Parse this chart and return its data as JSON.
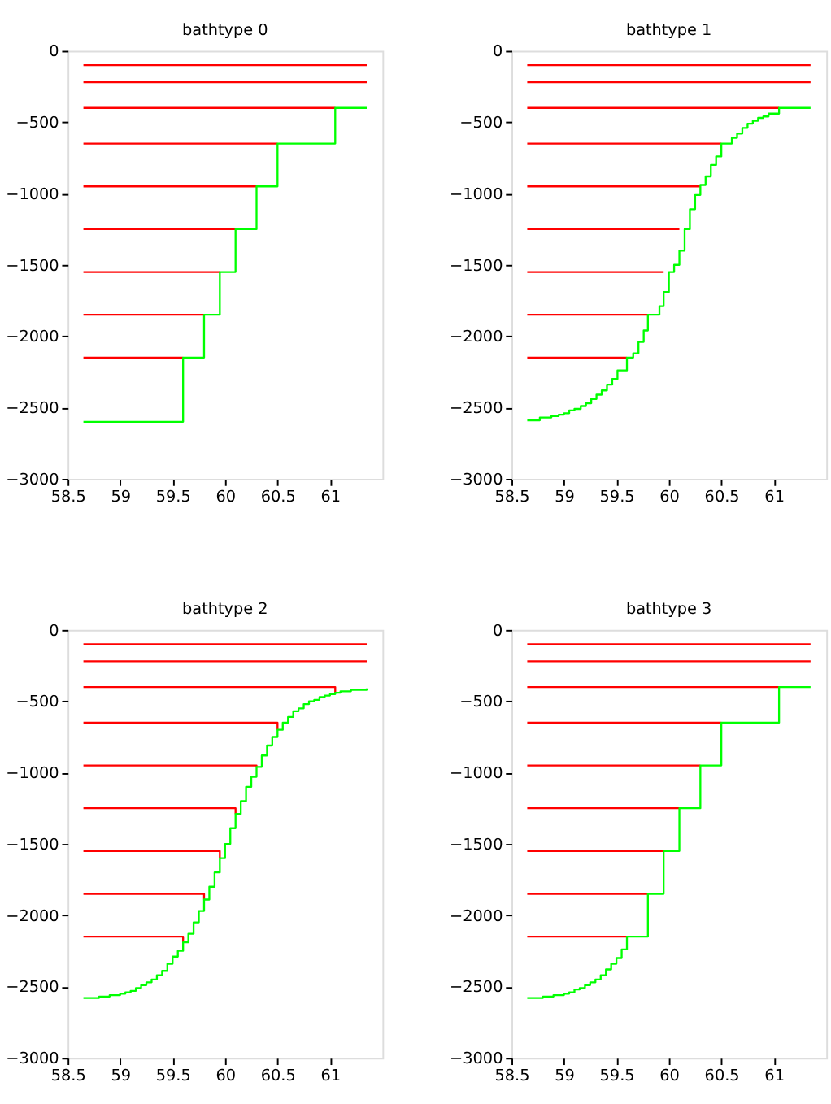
{
  "chart_data": [
    {
      "type": "line",
      "title": "bathtype 0",
      "xlim": [
        58.5,
        61.5
      ],
      "ylim": [
        -3000,
        0
      ],
      "xticks": [
        58.5,
        59,
        59.5,
        60,
        60.5,
        61
      ],
      "yticks": [
        -3000,
        -2500,
        -2000,
        -1500,
        -1000,
        -500,
        0
      ],
      "grid": false,
      "series": [
        {
          "color": "#ff0000",
          "x": [
            58.65,
            61.35
          ],
          "values": [
            -100,
            -100
          ]
        },
        {
          "color": "#ff0000",
          "x": [
            58.65,
            61.35
          ],
          "values": [
            -220,
            -220
          ]
        },
        {
          "color": "#ff0000",
          "x": [
            58.65,
            61.05
          ],
          "values": [
            -400,
            -400
          ]
        },
        {
          "color": "#ff0000",
          "x": [
            58.65,
            60.5
          ],
          "values": [
            -650,
            -650
          ]
        },
        {
          "color": "#ff0000",
          "x": [
            58.65,
            60.3
          ],
          "values": [
            -950,
            -950
          ]
        },
        {
          "color": "#ff0000",
          "x": [
            58.65,
            60.1
          ],
          "values": [
            -1250,
            -1250
          ]
        },
        {
          "color": "#ff0000",
          "x": [
            58.65,
            59.95
          ],
          "values": [
            -1550,
            -1550
          ]
        },
        {
          "color": "#ff0000",
          "x": [
            58.65,
            59.8
          ],
          "values": [
            -1850,
            -1850
          ]
        },
        {
          "color": "#ff0000",
          "x": [
            58.65,
            59.6
          ],
          "values": [
            -2150,
            -2150
          ]
        },
        {
          "type": "step",
          "color": "#00ff00",
          "x": [
            58.65,
            59.6,
            59.8,
            59.95,
            60.1,
            60.3,
            60.5,
            61.05,
            61.35
          ],
          "values": [
            -2600,
            -2150,
            -1850,
            -1550,
            -1250,
            -950,
            -650,
            -400,
            -400
          ]
        }
      ]
    },
    {
      "type": "line",
      "title": "bathtype 1",
      "xlim": [
        58.5,
        61.5
      ],
      "ylim": [
        -3000,
        0
      ],
      "xticks": [
        58.5,
        59,
        59.5,
        60,
        60.5,
        61
      ],
      "yticks": [
        -3000,
        -2500,
        -2000,
        -1500,
        -1000,
        -500,
        0
      ],
      "grid": false,
      "series": [
        {
          "color": "#ff0000",
          "x": [
            58.65,
            61.35
          ],
          "values": [
            -100,
            -100
          ]
        },
        {
          "color": "#ff0000",
          "x": [
            58.65,
            61.35
          ],
          "values": [
            -220,
            -220
          ]
        },
        {
          "color": "#ff0000",
          "x": [
            58.65,
            61.05
          ],
          "values": [
            -400,
            -400
          ]
        },
        {
          "color": "#ff0000",
          "x": [
            58.65,
            60.5
          ],
          "values": [
            -650,
            -650
          ]
        },
        {
          "color": "#ff0000",
          "x": [
            58.65,
            60.3
          ],
          "values": [
            -950,
            -950
          ]
        },
        {
          "color": "#ff0000",
          "x": [
            58.65,
            60.1
          ],
          "values": [
            -1250,
            -1250
          ]
        },
        {
          "color": "#ff0000",
          "x": [
            58.65,
            59.95
          ],
          "values": [
            -1550,
            -1550
          ]
        },
        {
          "color": "#ff0000",
          "x": [
            58.65,
            59.8
          ],
          "values": [
            -1850,
            -1850
          ]
        },
        {
          "color": "#ff0000",
          "x": [
            58.65,
            59.6
          ],
          "values": [
            -2150,
            -2150
          ]
        },
        {
          "type": "step",
          "color": "#00ff00",
          "x": [
            58.65,
            58.77,
            58.88,
            58.95,
            59.0,
            59.05,
            59.1,
            59.16,
            59.21,
            59.26,
            59.31,
            59.36,
            59.41,
            59.46,
            59.51,
            59.6,
            59.66,
            59.71,
            59.76,
            59.8,
            59.91,
            59.95,
            60.0,
            60.05,
            60.1,
            60.15,
            60.2,
            60.25,
            60.3,
            60.35,
            60.4,
            60.45,
            60.5,
            60.6,
            60.65,
            60.7,
            60.75,
            60.8,
            60.85,
            60.9,
            60.95,
            61.05,
            61.35
          ],
          "values": [
            -2590,
            -2570,
            -2560,
            -2550,
            -2540,
            -2520,
            -2510,
            -2490,
            -2470,
            -2440,
            -2410,
            -2380,
            -2340,
            -2300,
            -2240,
            -2150,
            -2120,
            -2040,
            -1960,
            -1850,
            -1790,
            -1690,
            -1550,
            -1500,
            -1400,
            -1250,
            -1110,
            -1010,
            -940,
            -880,
            -800,
            -740,
            -650,
            -610,
            -580,
            -540,
            -510,
            -490,
            -470,
            -460,
            -440,
            -400,
            -400
          ]
        }
      ]
    },
    {
      "type": "line",
      "title": "bathtype 2",
      "xlim": [
        58.5,
        61.5
      ],
      "ylim": [
        -3000,
        0
      ],
      "xticks": [
        58.5,
        59,
        59.5,
        60,
        60.5,
        61
      ],
      "yticks": [
        -3000,
        -2500,
        -2000,
        -1500,
        -1000,
        -500,
        0
      ],
      "grid": false,
      "series": [
        {
          "color": "#ff0000",
          "x": [
            58.65,
            61.35
          ],
          "values": [
            -100,
            -100
          ]
        },
        {
          "color": "#ff0000",
          "x": [
            58.65,
            61.35
          ],
          "values": [
            -220,
            -220
          ]
        },
        {
          "color": "#ff0000",
          "x": [
            58.65,
            61.05,
            61.05
          ],
          "values": [
            -400,
            -400,
            -440
          ]
        },
        {
          "color": "#ff0000",
          "x": [
            58.65,
            60.5,
            60.5
          ],
          "values": [
            -650,
            -650,
            -700
          ]
        },
        {
          "color": "#ff0000",
          "x": [
            58.65,
            60.3,
            60.3
          ],
          "values": [
            -950,
            -950,
            -960
          ]
        },
        {
          "color": "#ff0000",
          "x": [
            58.65,
            60.1,
            60.1
          ],
          "values": [
            -1250,
            -1250,
            -1290
          ]
        },
        {
          "color": "#ff0000",
          "x": [
            58.65,
            59.95,
            59.95
          ],
          "values": [
            -1550,
            -1550,
            -1600
          ]
        },
        {
          "color": "#ff0000",
          "x": [
            58.65,
            59.8,
            59.8
          ],
          "values": [
            -1850,
            -1850,
            -1890
          ]
        },
        {
          "color": "#ff0000",
          "x": [
            58.65,
            59.6,
            59.6
          ],
          "values": [
            -2150,
            -2150,
            -2190
          ]
        },
        {
          "type": "step",
          "color": "#00ff00",
          "x": [
            58.65,
            58.8,
            58.9,
            59.0,
            59.05,
            59.1,
            59.15,
            59.2,
            59.25,
            59.3,
            59.35,
            59.4,
            59.45,
            59.5,
            59.55,
            59.6,
            59.65,
            59.7,
            59.75,
            59.8,
            59.85,
            59.9,
            59.95,
            60.0,
            60.05,
            60.1,
            60.15,
            60.2,
            60.25,
            60.3,
            60.35,
            60.4,
            60.45,
            60.5,
            60.55,
            60.6,
            60.65,
            60.7,
            60.75,
            60.8,
            60.85,
            60.9,
            60.95,
            61.0,
            61.05,
            61.1,
            61.2,
            61.35
          ],
          "values": [
            -2580,
            -2570,
            -2560,
            -2550,
            -2540,
            -2530,
            -2510,
            -2490,
            -2470,
            -2450,
            -2420,
            -2390,
            -2340,
            -2290,
            -2250,
            -2190,
            -2130,
            -2050,
            -1970,
            -1890,
            -1800,
            -1700,
            -1600,
            -1500,
            -1390,
            -1290,
            -1200,
            -1100,
            -1030,
            -960,
            -880,
            -810,
            -750,
            -700,
            -650,
            -610,
            -570,
            -550,
            -520,
            -500,
            -490,
            -470,
            -460,
            -450,
            -440,
            -430,
            -420,
            -410
          ]
        }
      ]
    },
    {
      "type": "line",
      "title": "bathtype 3",
      "xlim": [
        58.5,
        61.5
      ],
      "ylim": [
        -3000,
        0
      ],
      "xticks": [
        58.5,
        59,
        59.5,
        60,
        60.5,
        61
      ],
      "yticks": [
        -3000,
        -2500,
        -2000,
        -1500,
        -1000,
        -500,
        0
      ],
      "grid": false,
      "series": [
        {
          "color": "#ff0000",
          "x": [
            58.65,
            61.35
          ],
          "values": [
            -100,
            -100
          ]
        },
        {
          "color": "#ff0000",
          "x": [
            58.65,
            61.35
          ],
          "values": [
            -220,
            -220
          ]
        },
        {
          "color": "#ff0000",
          "x": [
            58.65,
            61.05
          ],
          "values": [
            -400,
            -400
          ]
        },
        {
          "color": "#ff0000",
          "x": [
            58.65,
            60.5
          ],
          "values": [
            -650,
            -650
          ]
        },
        {
          "color": "#ff0000",
          "x": [
            58.65,
            60.3
          ],
          "values": [
            -950,
            -950
          ]
        },
        {
          "color": "#ff0000",
          "x": [
            58.65,
            60.1
          ],
          "values": [
            -1250,
            -1250
          ]
        },
        {
          "color": "#ff0000",
          "x": [
            58.65,
            59.95
          ],
          "values": [
            -1550,
            -1550
          ]
        },
        {
          "color": "#ff0000",
          "x": [
            58.65,
            59.8
          ],
          "values": [
            -1850,
            -1850
          ]
        },
        {
          "color": "#ff0000",
          "x": [
            58.65,
            59.6
          ],
          "values": [
            -2150,
            -2150
          ]
        },
        {
          "type": "step",
          "color": "#00ff00",
          "x": [
            58.65,
            58.8,
            58.9,
            59.0,
            59.05,
            59.1,
            59.15,
            59.2,
            59.25,
            59.3,
            59.35,
            59.4,
            59.45,
            59.5,
            59.55,
            59.6,
            59.8,
            59.95,
            60.1,
            60.3,
            60.5,
            61.05,
            61.35
          ],
          "values": [
            -2580,
            -2570,
            -2560,
            -2550,
            -2540,
            -2520,
            -2510,
            -2490,
            -2470,
            -2450,
            -2420,
            -2380,
            -2340,
            -2300,
            -2240,
            -2150,
            -1850,
            -1550,
            -1250,
            -950,
            -650,
            -400,
            -400
          ]
        }
      ]
    }
  ]
}
